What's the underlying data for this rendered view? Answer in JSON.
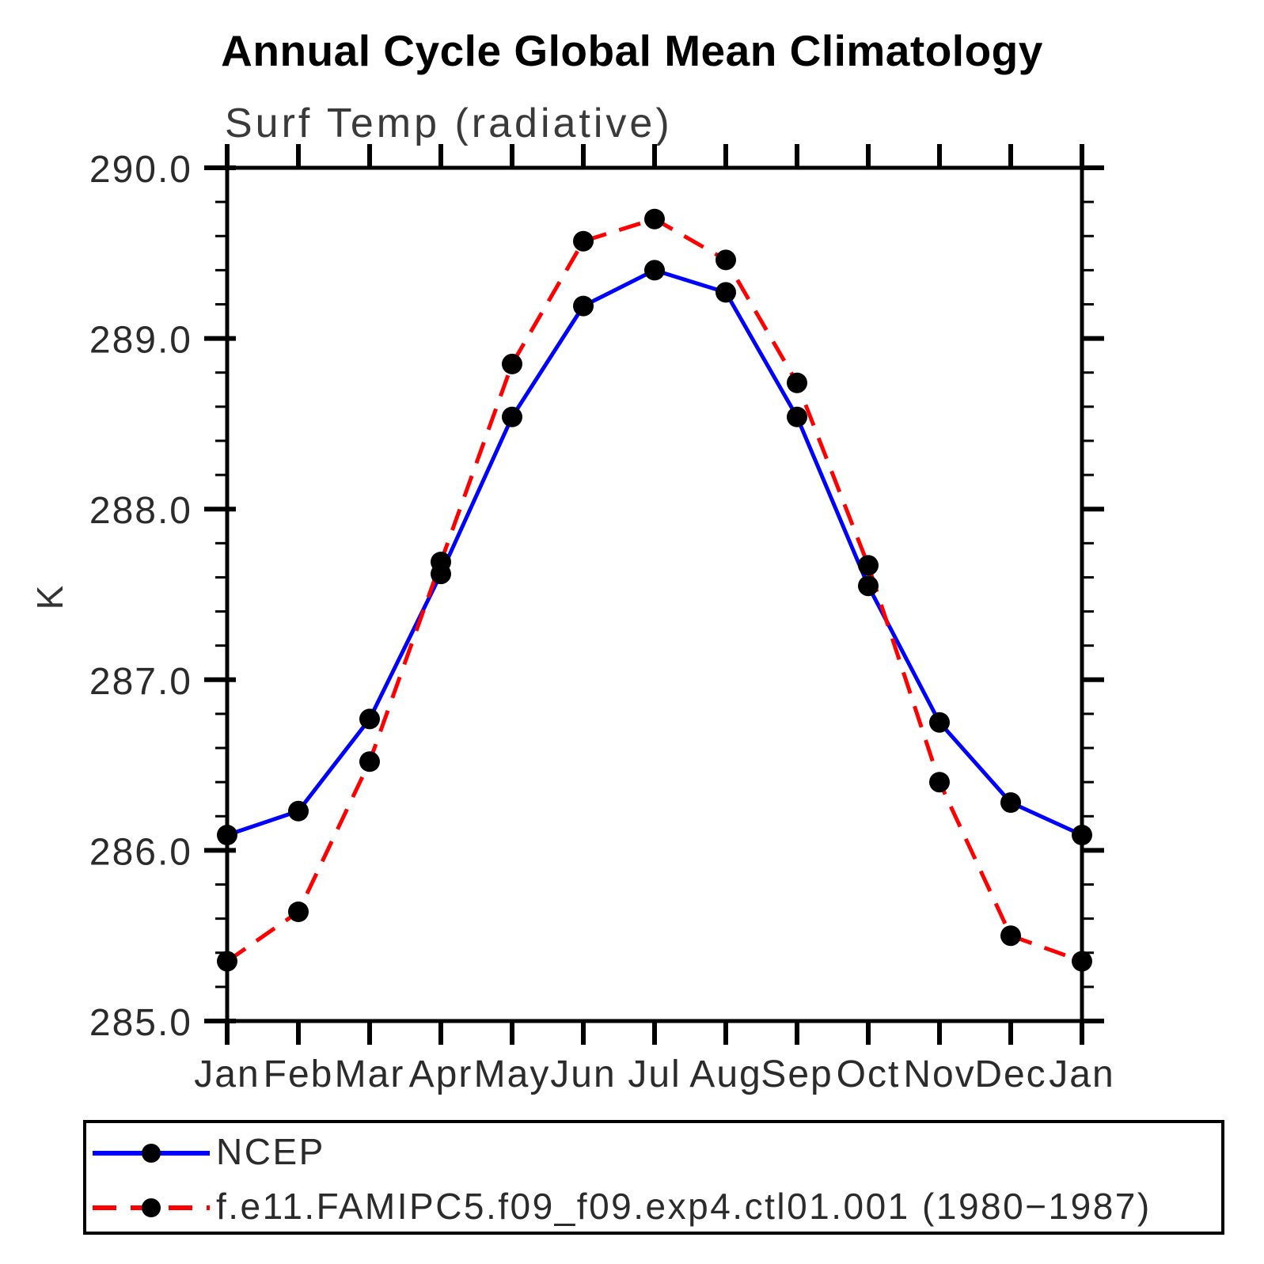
{
  "title": "Annual Cycle Global Mean Climatology",
  "subtitle": "Surf Temp (radiative)",
  "chart_data": {
    "type": "line",
    "title": "Annual Cycle Global Mean Climatology",
    "subtitle": "Surf Temp (radiative)",
    "xlabel": "",
    "ylabel": "K",
    "x_tick_labels": [
      "Jan",
      "Feb",
      "Mar",
      "Apr",
      "May",
      "Jun",
      "Jul",
      "Aug",
      "Sep",
      "Oct",
      "Nov",
      "Dec",
      "Jan"
    ],
    "ylim": [
      285.0,
      290.0
    ],
    "y_major_ticks": [
      285.0,
      286.0,
      287.0,
      288.0,
      289.0,
      290.0
    ],
    "y_tick_labels": [
      "285.0",
      "286.0",
      "287.0",
      "288.0",
      "289.0",
      "290.0"
    ],
    "y_minor_step": 0.2,
    "grid": false,
    "legend_position": "bottom",
    "series": [
      {
        "name": "NCEP",
        "color": "#0000ff",
        "line_style": "solid",
        "marker": "filled-circle",
        "marker_color": "#000000",
        "values": [
          286.09,
          286.23,
          286.77,
          287.62,
          288.54,
          289.19,
          289.4,
          289.27,
          288.54,
          287.55,
          286.75,
          286.28,
          286.09
        ]
      },
      {
        "name": "f.e11.FAMIPC5.f09_f09.exp4.ctl01.001 (1980−1987)",
        "color": "#ff0000",
        "line_style": "dashed",
        "marker": "filled-circle",
        "marker_color": "#000000",
        "values": [
          285.35,
          285.64,
          286.52,
          287.69,
          288.85,
          289.57,
          289.7,
          289.46,
          288.74,
          287.67,
          286.4,
          285.5,
          285.35
        ]
      }
    ]
  }
}
